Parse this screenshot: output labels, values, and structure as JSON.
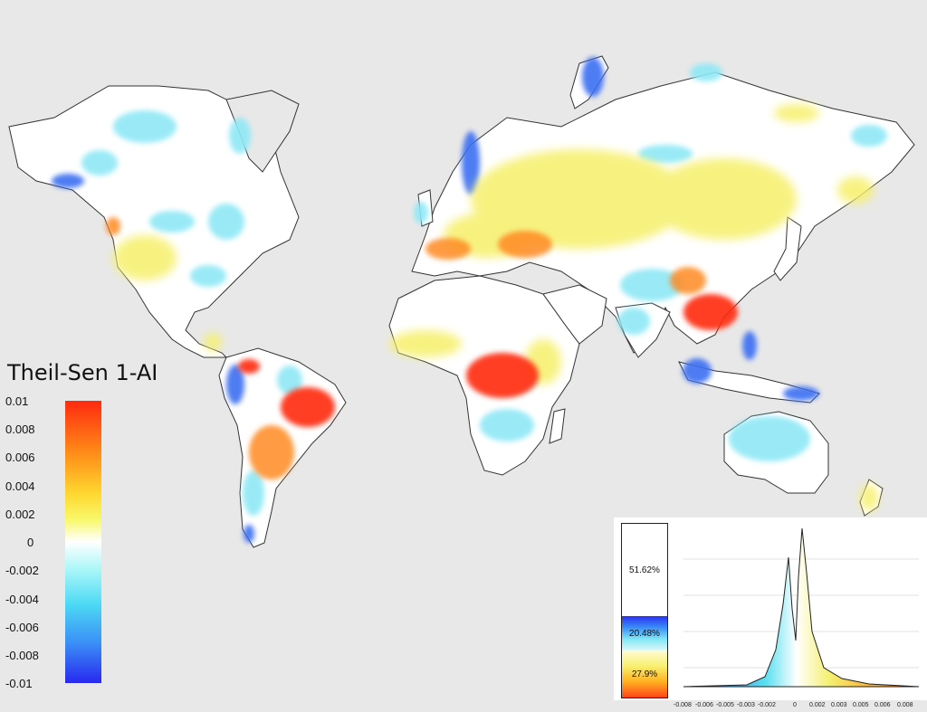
{
  "legend": {
    "title": "Theil-Sen 1-AI",
    "ticks": [
      "0.01",
      "0.008",
      "0.006",
      "0.004",
      "0.002",
      "0",
      "-0.002",
      "-0.004",
      "-0.006",
      "-0.008",
      "-0.01"
    ]
  },
  "inset": {
    "stack": {
      "white_pct": "51.62%",
      "blue_pct": "20.48%",
      "red_pct": "27.9%"
    },
    "xaxis_ticks": [
      "-0.008",
      "-0.006",
      "-0.005",
      "-0.003",
      "-0.002",
      "0",
      "0.002",
      "0.003",
      "0.005",
      "0.006",
      "0.008"
    ]
  },
  "colors": {
    "background": "#e8e8e8",
    "land_neutral": "#ffffff",
    "positive_high": "#ff2a10",
    "positive_mid": "#f8f06a",
    "negative_mid": "#4cdaf4",
    "negative_high": "#2828f0"
  }
}
